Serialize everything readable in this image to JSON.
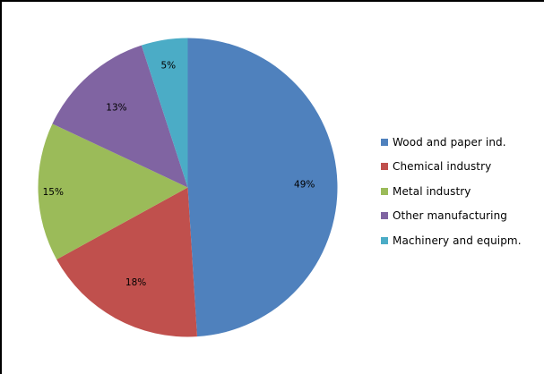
{
  "chart_data": {
    "type": "pie",
    "title": "",
    "categories": [
      "Wood and paper ind.",
      "Chemical industry",
      "Metal industry",
      "Other manufacturing",
      "Machinery and equipm."
    ],
    "values": [
      49,
      18,
      15,
      13,
      5
    ],
    "value_labels": [
      "49%",
      "18%",
      "15%",
      "13%",
      "5%"
    ],
    "colors": [
      "#4F81BD",
      "#C0504D",
      "#9BBB59",
      "#8064A2",
      "#4BACC6"
    ],
    "start_angle_deg": 0,
    "direction": "clockwise",
    "legend_position": "right"
  },
  "legend": {
    "items": [
      {
        "label": "Wood and paper ind.",
        "color": "#4F81BD"
      },
      {
        "label": "Chemical industry",
        "color": "#C0504D"
      },
      {
        "label": "Metal industry",
        "color": "#9BBB59"
      },
      {
        "label": "Other manufacturing",
        "color": "#8064A2"
      },
      {
        "label": "Machinery and equipm.",
        "color": "#4BACC6"
      }
    ]
  }
}
